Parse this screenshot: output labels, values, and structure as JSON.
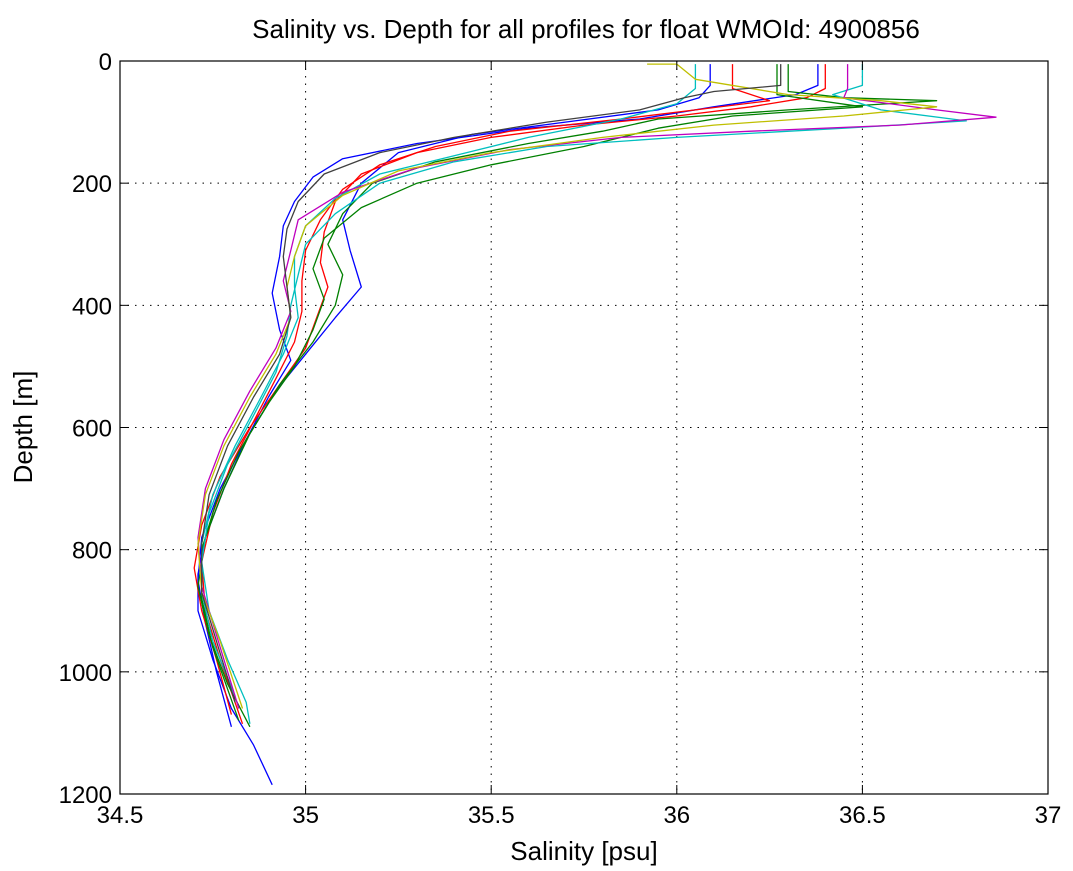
{
  "chart_data": {
    "type": "line",
    "title": "Salinity vs. Depth for all profiles for float WMOId: 4900856",
    "xlabel": "Salinity [psu]",
    "ylabel": "Depth [m]",
    "xlim": [
      34.5,
      37
    ],
    "ylim": [
      0,
      1200
    ],
    "y_reversed": true,
    "grid": true,
    "x_ticks": [
      "34.5",
      "35",
      "35.5",
      "36",
      "36.5",
      "37"
    ],
    "y_ticks": [
      "0",
      "200",
      "400",
      "600",
      "800",
      "1000",
      "1200"
    ],
    "series": [
      {
        "color": "#0000ff",
        "points": [
          [
            36.38,
            5
          ],
          [
            36.38,
            40
          ],
          [
            36.32,
            55
          ],
          [
            36.1,
            75
          ],
          [
            35.9,
            95
          ],
          [
            35.6,
            110
          ],
          [
            35.3,
            135
          ],
          [
            35.1,
            160
          ],
          [
            35.02,
            190
          ],
          [
            34.97,
            230
          ],
          [
            34.94,
            270
          ],
          [
            34.93,
            320
          ],
          [
            34.91,
            380
          ],
          [
            34.93,
            440
          ],
          [
            34.96,
            490
          ],
          [
            34.9,
            550
          ],
          [
            34.84,
            620
          ],
          [
            34.78,
            700
          ],
          [
            34.73,
            780
          ],
          [
            34.71,
            840
          ],
          [
            34.71,
            900
          ],
          [
            34.75,
            980
          ],
          [
            34.8,
            1060
          ],
          [
            34.86,
            1120
          ],
          [
            34.91,
            1185
          ]
        ]
      },
      {
        "color": "#0000ff",
        "points": [
          [
            36.09,
            5
          ],
          [
            36.09,
            40
          ],
          [
            36.06,
            60
          ],
          [
            35.95,
            80
          ],
          [
            35.7,
            100
          ],
          [
            35.45,
            120
          ],
          [
            35.25,
            150
          ],
          [
            35.15,
            200
          ],
          [
            35.1,
            260
          ],
          [
            35.12,
            310
          ],
          [
            35.15,
            370
          ],
          [
            35.08,
            420
          ],
          [
            35.0,
            480
          ],
          [
            34.92,
            540
          ],
          [
            34.84,
            620
          ],
          [
            34.77,
            700
          ],
          [
            34.72,
            780
          ],
          [
            34.71,
            850
          ],
          [
            34.73,
            920
          ],
          [
            34.76,
            1000
          ],
          [
            34.8,
            1090
          ]
        ]
      },
      {
        "color": "#ff0000",
        "points": [
          [
            36.4,
            5
          ],
          [
            36.4,
            45
          ],
          [
            36.35,
            60
          ],
          [
            36.2,
            75
          ],
          [
            36.0,
            90
          ],
          [
            35.75,
            105
          ],
          [
            35.5,
            125
          ],
          [
            35.3,
            150
          ],
          [
            35.15,
            185
          ],
          [
            35.08,
            230
          ],
          [
            35.05,
            280
          ],
          [
            35.04,
            330
          ],
          [
            35.06,
            370
          ],
          [
            35.03,
            420
          ],
          [
            35.0,
            470
          ],
          [
            34.93,
            530
          ],
          [
            34.85,
            600
          ],
          [
            34.77,
            680
          ],
          [
            34.72,
            760
          ],
          [
            34.7,
            830
          ],
          [
            34.72,
            900
          ],
          [
            34.76,
            980
          ],
          [
            34.8,
            1070
          ]
        ]
      },
      {
        "color": "#ff0000",
        "points": [
          [
            36.15,
            5
          ],
          [
            36.15,
            45
          ],
          [
            36.25,
            65
          ],
          [
            36.05,
            80
          ],
          [
            35.85,
            95
          ],
          [
            35.55,
            115
          ],
          [
            35.35,
            140
          ],
          [
            35.2,
            170
          ],
          [
            35.1,
            210
          ],
          [
            35.04,
            260
          ],
          [
            35.0,
            310
          ],
          [
            34.99,
            360
          ],
          [
            34.99,
            410
          ],
          [
            34.97,
            460
          ],
          [
            34.92,
            520
          ],
          [
            34.86,
            590
          ],
          [
            34.8,
            660
          ],
          [
            34.75,
            740
          ],
          [
            34.72,
            820
          ],
          [
            34.73,
            900
          ],
          [
            34.77,
            980
          ],
          [
            34.83,
            1085
          ]
        ]
      },
      {
        "color": "#008000",
        "points": [
          [
            36.3,
            5
          ],
          [
            36.3,
            50
          ],
          [
            36.45,
            60
          ],
          [
            36.7,
            65
          ],
          [
            36.3,
            80
          ],
          [
            35.95,
            95
          ],
          [
            35.8,
            115
          ],
          [
            35.6,
            135
          ],
          [
            35.35,
            165
          ],
          [
            35.18,
            200
          ],
          [
            35.1,
            250
          ],
          [
            35.06,
            300
          ],
          [
            35.1,
            350
          ],
          [
            35.08,
            400
          ],
          [
            35.02,
            460
          ],
          [
            34.93,
            530
          ],
          [
            34.85,
            610
          ],
          [
            34.78,
            700
          ],
          [
            34.73,
            780
          ],
          [
            34.71,
            860
          ],
          [
            34.74,
            940
          ],
          [
            34.79,
            1020
          ],
          [
            34.85,
            1090
          ]
        ]
      },
      {
        "color": "#008000",
        "points": [
          [
            36.27,
            5
          ],
          [
            36.27,
            55
          ],
          [
            36.5,
            75
          ],
          [
            36.15,
            90
          ],
          [
            35.95,
            110
          ],
          [
            35.75,
            140
          ],
          [
            35.5,
            170
          ],
          [
            35.3,
            200
          ],
          [
            35.15,
            240
          ],
          [
            35.05,
            290
          ],
          [
            35.02,
            340
          ],
          [
            35.05,
            390
          ],
          [
            35.02,
            440
          ],
          [
            34.97,
            500
          ],
          [
            34.9,
            560
          ],
          [
            34.82,
            640
          ],
          [
            34.76,
            720
          ],
          [
            34.72,
            800
          ],
          [
            34.72,
            880
          ],
          [
            34.75,
            960
          ],
          [
            34.82,
            1080
          ]
        ]
      },
      {
        "color": "#00bfbf",
        "points": [
          [
            36.5,
            5
          ],
          [
            36.5,
            40
          ],
          [
            36.42,
            55
          ],
          [
            36.55,
            80
          ],
          [
            36.78,
            98
          ],
          [
            36.45,
            110
          ],
          [
            36.0,
            125
          ],
          [
            35.65,
            140
          ],
          [
            35.4,
            165
          ],
          [
            35.2,
            200
          ],
          [
            35.08,
            250
          ],
          [
            35.0,
            300
          ],
          [
            34.98,
            350
          ],
          [
            34.96,
            400
          ],
          [
            34.95,
            450
          ],
          [
            34.92,
            510
          ],
          [
            34.86,
            580
          ],
          [
            34.79,
            660
          ],
          [
            34.74,
            740
          ],
          [
            34.72,
            820
          ],
          [
            34.74,
            900
          ],
          [
            34.79,
            980
          ],
          [
            34.84,
            1050
          ],
          [
            34.85,
            1085
          ]
        ]
      },
      {
        "color": "#00bfbf",
        "points": [
          [
            36.05,
            5
          ],
          [
            36.05,
            45
          ],
          [
            36.0,
            70
          ],
          [
            35.85,
            95
          ],
          [
            35.6,
            125
          ],
          [
            35.4,
            155
          ],
          [
            35.2,
            185
          ],
          [
            35.08,
            225
          ],
          [
            35.0,
            270
          ],
          [
            34.97,
            320
          ],
          [
            34.97,
            370
          ],
          [
            34.98,
            420
          ],
          [
            34.94,
            480
          ],
          [
            34.88,
            550
          ],
          [
            34.81,
            630
          ],
          [
            34.75,
            710
          ],
          [
            34.72,
            790
          ],
          [
            34.72,
            870
          ],
          [
            34.75,
            950
          ],
          [
            34.81,
            1040
          ]
        ]
      },
      {
        "color": "#bf00bf",
        "points": [
          [
            36.46,
            5
          ],
          [
            36.46,
            45
          ],
          [
            36.45,
            60
          ],
          [
            36.7,
            80
          ],
          [
            36.86,
            92
          ],
          [
            36.6,
            105
          ],
          [
            36.2,
            115
          ],
          [
            35.85,
            125
          ],
          [
            35.55,
            145
          ],
          [
            35.3,
            175
          ],
          [
            35.1,
            215
          ],
          [
            34.98,
            260
          ],
          [
            34.96,
            310
          ],
          [
            34.94,
            360
          ],
          [
            34.96,
            410
          ],
          [
            34.92,
            470
          ],
          [
            34.85,
            540
          ],
          [
            34.78,
            620
          ],
          [
            34.73,
            700
          ],
          [
            34.71,
            780
          ],
          [
            34.72,
            860
          ],
          [
            34.76,
            940
          ],
          [
            34.82,
            1060
          ]
        ]
      },
      {
        "color": "#bfbf00",
        "points": [
          [
            35.92,
            5
          ],
          [
            36.0,
            5
          ],
          [
            36.05,
            30
          ],
          [
            36.3,
            55
          ],
          [
            36.55,
            65
          ],
          [
            36.7,
            75
          ],
          [
            36.45,
            90
          ],
          [
            36.1,
            105
          ],
          [
            35.8,
            125
          ],
          [
            35.5,
            150
          ],
          [
            35.25,
            180
          ],
          [
            35.1,
            220
          ],
          [
            35.0,
            270
          ],
          [
            34.97,
            320
          ],
          [
            34.95,
            370
          ],
          [
            34.96,
            420
          ],
          [
            34.92,
            480
          ],
          [
            34.85,
            550
          ],
          [
            34.78,
            630
          ],
          [
            34.73,
            710
          ],
          [
            34.71,
            790
          ],
          [
            34.72,
            870
          ],
          [
            34.77,
            950
          ],
          [
            34.83,
            1060
          ]
        ]
      },
      {
        "color": "#404040",
        "points": [
          [
            36.28,
            5
          ],
          [
            36.28,
            40
          ],
          [
            36.1,
            50
          ],
          [
            36.02,
            60
          ],
          [
            35.9,
            80
          ],
          [
            35.65,
            100
          ],
          [
            35.4,
            125
          ],
          [
            35.2,
            150
          ],
          [
            35.05,
            185
          ],
          [
            34.98,
            230
          ],
          [
            34.95,
            275
          ],
          [
            34.94,
            320
          ],
          [
            34.95,
            370
          ],
          [
            34.96,
            420
          ],
          [
            34.93,
            480
          ],
          [
            34.86,
            550
          ],
          [
            34.79,
            630
          ],
          [
            34.74,
            710
          ],
          [
            34.72,
            790
          ],
          [
            34.72,
            870
          ],
          [
            34.76,
            950
          ],
          [
            34.81,
            1050
          ]
        ]
      }
    ]
  }
}
